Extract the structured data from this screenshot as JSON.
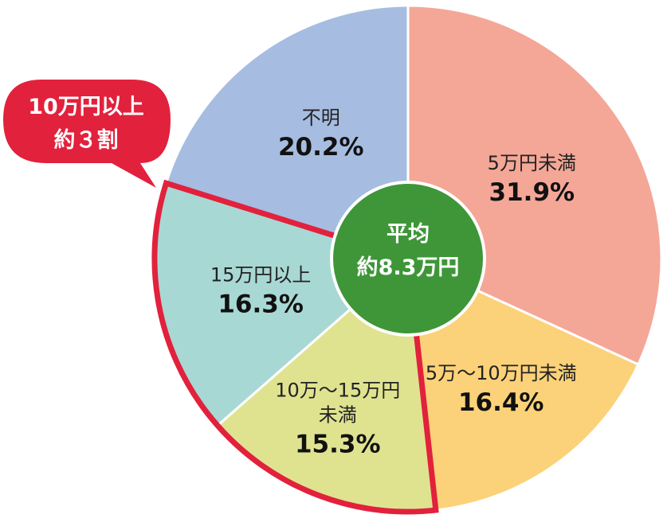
{
  "chart_data": {
    "type": "pie",
    "start_angle_deg": 0,
    "direction": "clockwise",
    "slices": [
      {
        "label": "5万円未満",
        "label_lines": [
          "5万円未満"
        ],
        "value": 31.9,
        "value_label": "31.9%",
        "color": "#f4a797",
        "highlight": false
      },
      {
        "label": "5万〜10万円未満",
        "label_lines": [
          "5万〜10万円未満"
        ],
        "value": 16.4,
        "value_label": "16.4%",
        "color": "#fbd279",
        "highlight": false
      },
      {
        "label": "10万〜15万円未満",
        "label_lines": [
          "10万〜15万円",
          "未満"
        ],
        "value": 15.3,
        "value_label": "15.3%",
        "color": "#dfe390",
        "highlight": true
      },
      {
        "label": "15万円以上",
        "label_lines": [
          "15万円以上"
        ],
        "value": 16.3,
        "value_label": "16.3%",
        "color": "#a8d8d4",
        "highlight": true
      },
      {
        "label": "不明",
        "label_lines": [
          "不明"
        ],
        "value": 20.2,
        "value_label": "20.2%",
        "color": "#a6bde1",
        "highlight": false
      }
    ],
    "center_label": {
      "lines": [
        "平均",
        "約8.3万円"
      ],
      "color": "#3f9638"
    },
    "callout": {
      "lines": [
        "10万円以上",
        "約３割"
      ],
      "color": "#e2213c"
    },
    "highlight_color": "#e2213c",
    "separator_color": "#ffffff"
  }
}
